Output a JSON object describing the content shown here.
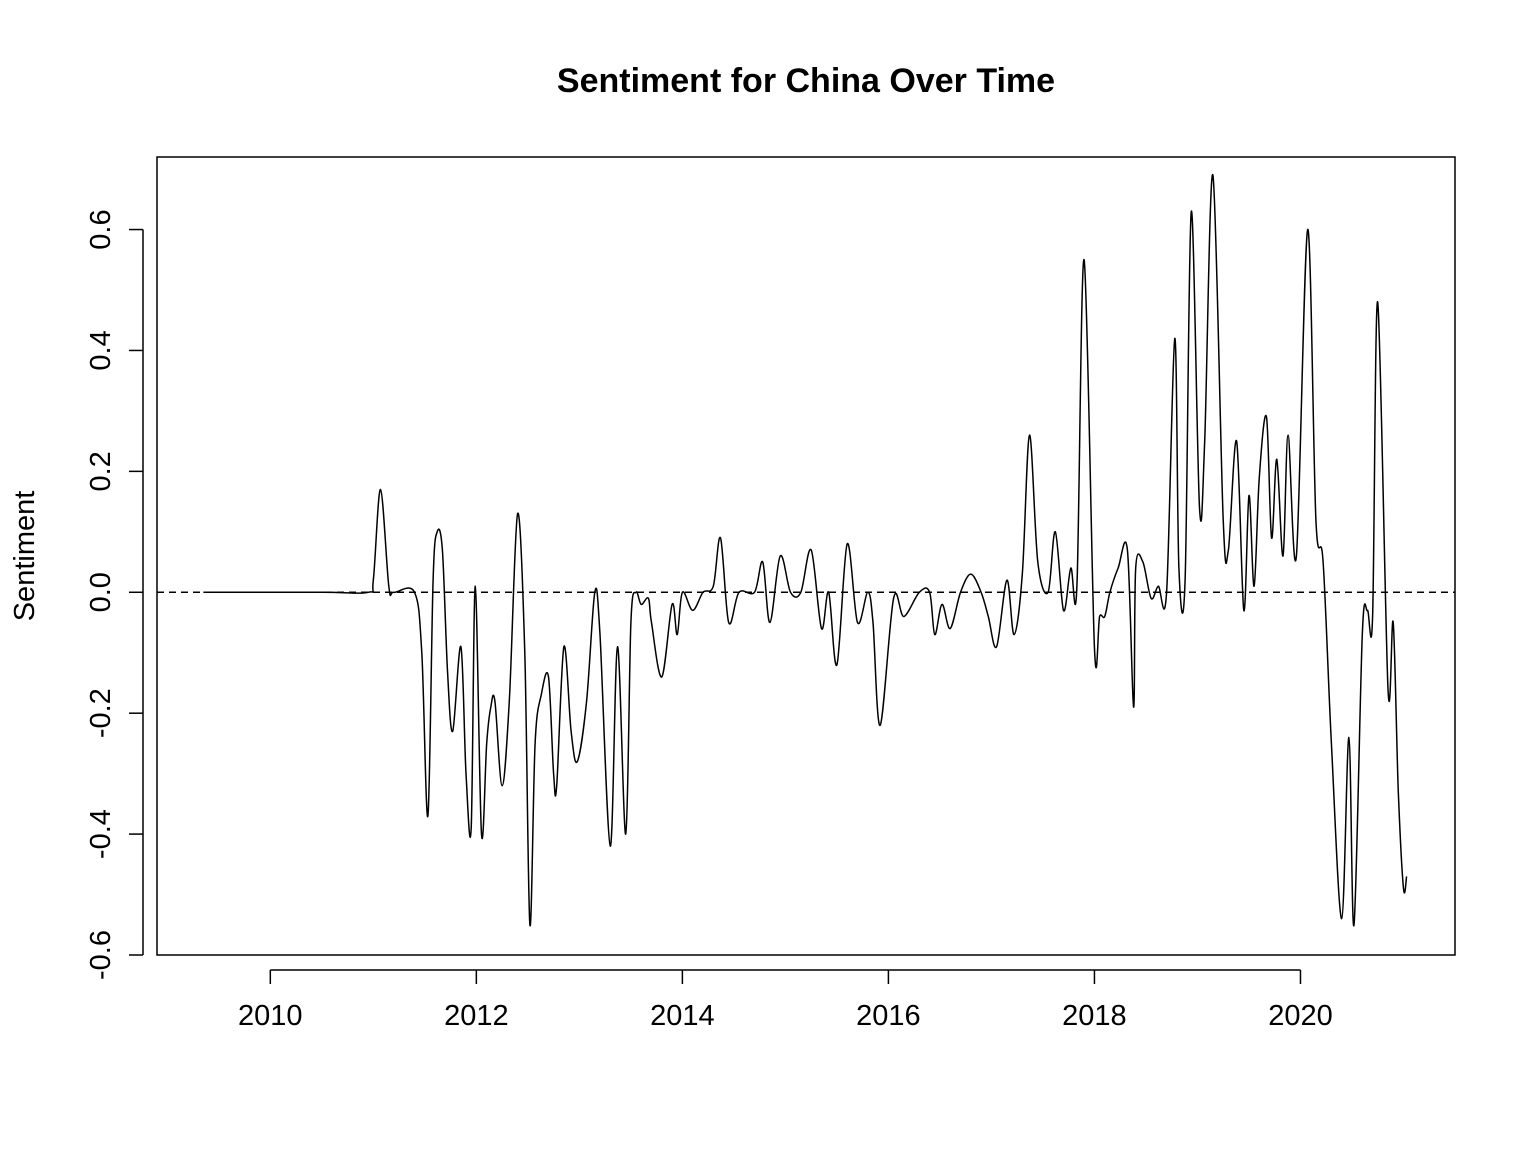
{
  "chart_data": {
    "type": "line",
    "title": "Sentiment for China Over Time",
    "xlabel": "",
    "ylabel": "Sentiment",
    "xlim": [
      2008.9,
      2021.5
    ],
    "ylim": [
      -0.6,
      0.72
    ],
    "x_ticks": [
      2010,
      2012,
      2014,
      2016,
      2018,
      2020
    ],
    "x_tick_labels": [
      "2010",
      "2012",
      "2014",
      "2016",
      "2018",
      "2020"
    ],
    "y_ticks": [
      -0.6,
      -0.4,
      -0.2,
      0.0,
      0.2,
      0.4,
      0.6
    ],
    "y_tick_labels": [
      "-0.6",
      "-0.4",
      "-0.2",
      "0.0",
      "0.2",
      "0.4",
      "0.6"
    ],
    "reference_line": {
      "y": 0.0,
      "style": "dashed"
    },
    "grid": false,
    "legend": "none",
    "series": [
      {
        "color": "#000000",
        "x": [
          2009.35,
          2010.5,
          2010.95,
          2011.0,
          2011.07,
          2011.15,
          2011.2,
          2011.4,
          2011.47,
          2011.53,
          2011.58,
          2011.62,
          2011.67,
          2011.72,
          2011.77,
          2011.85,
          2011.9,
          2011.95,
          2011.99,
          2012.05,
          2012.1,
          2012.14,
          2012.18,
          2012.25,
          2012.32,
          2012.4,
          2012.47,
          2012.52,
          2012.57,
          2012.63,
          2012.7,
          2012.75,
          2012.78,
          2012.85,
          2012.92,
          2012.98,
          2013.07,
          2013.15,
          2013.2,
          2013.3,
          2013.37,
          2013.45,
          2013.5,
          2013.55,
          2013.6,
          2013.67,
          2013.7,
          2013.8,
          2013.9,
          2013.95,
          2014.0,
          2014.1,
          2014.2,
          2014.3,
          2014.37,
          2014.45,
          2014.55,
          2014.7,
          2014.78,
          2014.85,
          2014.95,
          2015.05,
          2015.15,
          2015.25,
          2015.35,
          2015.42,
          2015.5,
          2015.6,
          2015.7,
          2015.8,
          2015.85,
          2015.92,
          2016.05,
          2016.15,
          2016.3,
          2016.4,
          2016.45,
          2016.52,
          2016.6,
          2016.7,
          2016.8,
          2016.9,
          2016.97,
          2017.05,
          2017.15,
          2017.22,
          2017.3,
          2017.37,
          2017.45,
          2017.55,
          2017.62,
          2017.7,
          2017.77,
          2017.83,
          2017.9,
          2018.0,
          2018.05,
          2018.1,
          2018.15,
          2018.23,
          2018.32,
          2018.38,
          2018.4,
          2018.47,
          2018.55,
          2018.62,
          2018.7,
          2018.78,
          2018.82,
          2018.88,
          2018.94,
          2019.02,
          2019.07,
          2019.15,
          2019.25,
          2019.3,
          2019.38,
          2019.45,
          2019.5,
          2019.55,
          2019.6,
          2019.67,
          2019.72,
          2019.77,
          2019.83,
          2019.88,
          2019.96,
          2020.07,
          2020.15,
          2020.22,
          2020.3,
          2020.4,
          2020.47,
          2020.52,
          2020.6,
          2020.65,
          2020.7,
          2020.75,
          2020.85,
          2020.9,
          2020.95,
          2021.0,
          2021.03
        ],
        "y": [
          0.0,
          0.0,
          0.0,
          0.02,
          0.17,
          0.01,
          0.0,
          0.0,
          -0.1,
          -0.37,
          0.02,
          0.1,
          0.07,
          -0.13,
          -0.23,
          -0.09,
          -0.3,
          -0.39,
          0.01,
          -0.4,
          -0.25,
          -0.19,
          -0.18,
          -0.32,
          -0.18,
          0.13,
          -0.1,
          -0.55,
          -0.25,
          -0.17,
          -0.14,
          -0.3,
          -0.32,
          -0.09,
          -0.23,
          -0.28,
          -0.18,
          0.0,
          -0.07,
          -0.42,
          -0.09,
          -0.4,
          -0.05,
          0.0,
          -0.02,
          -0.01,
          -0.05,
          -0.14,
          -0.02,
          -0.07,
          0.0,
          -0.03,
          0.0,
          0.01,
          0.09,
          -0.05,
          0.0,
          0.0,
          0.05,
          -0.05,
          0.06,
          0.0,
          0.0,
          0.07,
          -0.06,
          0.0,
          -0.12,
          0.08,
          -0.05,
          0.0,
          -0.05,
          -0.22,
          -0.01,
          -0.04,
          0.0,
          0.0,
          -0.07,
          -0.02,
          -0.06,
          0.0,
          0.03,
          0.0,
          -0.04,
          -0.09,
          0.02,
          -0.07,
          0.03,
          0.26,
          0.05,
          0.0,
          0.1,
          -0.03,
          0.04,
          0.01,
          0.55,
          -0.09,
          -0.04,
          -0.04,
          0.0,
          0.04,
          0.07,
          -0.19,
          0.04,
          0.05,
          -0.01,
          0.01,
          0.0,
          0.42,
          0.04,
          0.02,
          0.63,
          0.14,
          0.25,
          0.69,
          0.12,
          0.07,
          0.25,
          -0.03,
          0.16,
          0.01,
          0.19,
          0.29,
          0.09,
          0.22,
          0.06,
          0.26,
          0.06,
          0.6,
          0.12,
          0.05,
          -0.25,
          -0.54,
          -0.24,
          -0.55,
          -0.07,
          -0.03,
          -0.04,
          0.48,
          -0.16,
          -0.05,
          -0.33,
          -0.49,
          -0.47
        ]
      }
    ]
  }
}
